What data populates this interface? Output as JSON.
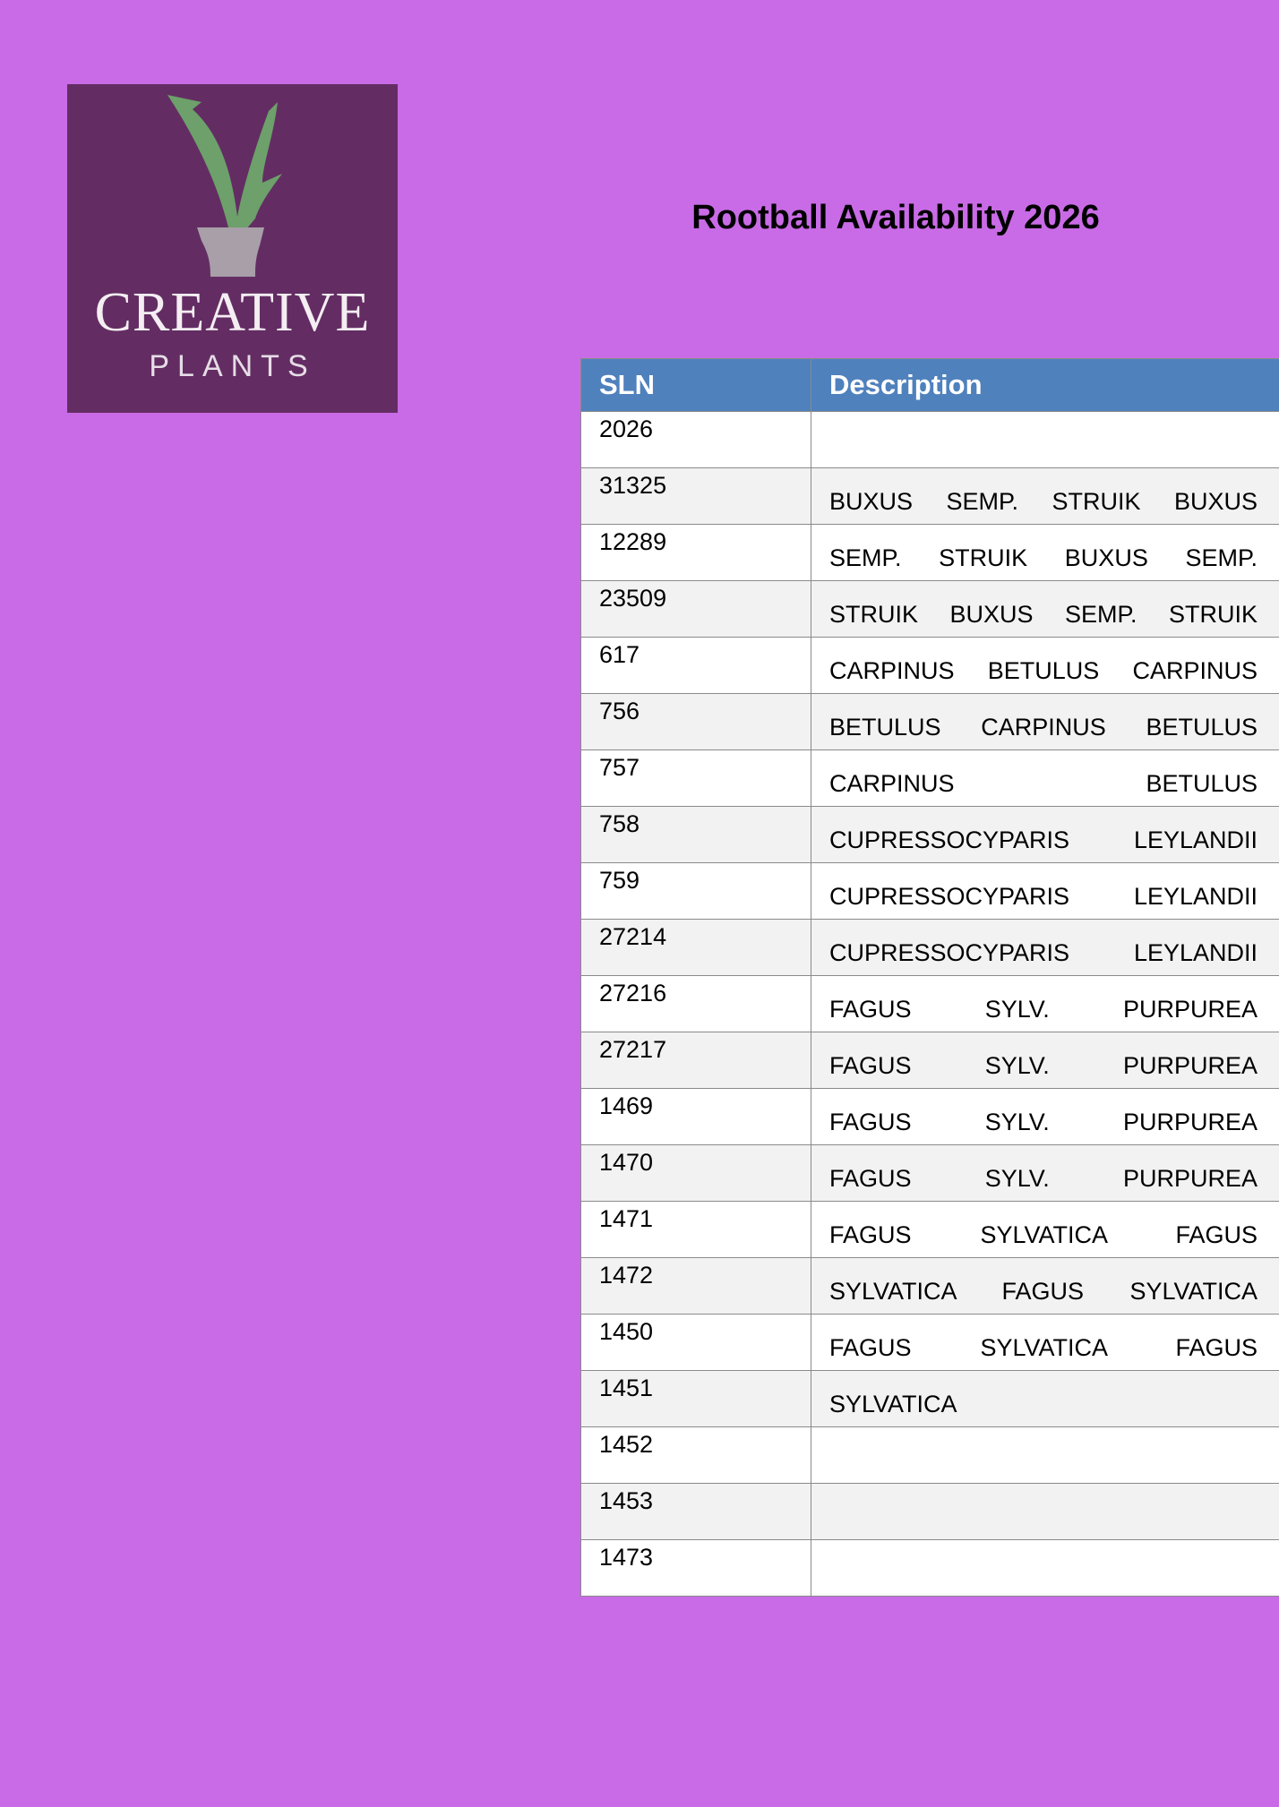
{
  "logo": {
    "line1": "CREATIVE",
    "line2": "PLANTS"
  },
  "title": "Rootball Availability 2026",
  "table": {
    "headers": [
      "SLN",
      "Description"
    ],
    "rows": [
      {
        "sln": "2026",
        "desc": ""
      },
      {
        "sln": "31325",
        "desc": "BUXUS SEMP. STRUIK BUXUS"
      },
      {
        "sln": "12289",
        "desc": "SEMP. STRUIK BUXUS SEMP."
      },
      {
        "sln": "23509",
        "desc": "STRUIK BUXUS SEMP. STRUIK"
      },
      {
        "sln": "617",
        "desc": "CARPINUS BETULUS CARPINUS"
      },
      {
        "sln": "756",
        "desc": "BETULUS CARPINUS BETULUS"
      },
      {
        "sln": "757",
        "desc": "CARPINUS BETULUS"
      },
      {
        "sln": "758",
        "desc": "CUPRESSOCYPARIS LEYLANDII"
      },
      {
        "sln": "759",
        "desc": "CUPRESSOCYPARIS LEYLANDII"
      },
      {
        "sln": "27214",
        "desc": "CUPRESSOCYPARIS LEYLANDII"
      },
      {
        "sln": "27216",
        "desc": "FAGUS SYLV. PURPUREA"
      },
      {
        "sln": "27217",
        "desc": "FAGUS SYLV. PURPUREA"
      },
      {
        "sln": "1469",
        "desc": "FAGUS SYLV. PURPUREA"
      },
      {
        "sln": "1470",
        "desc": "FAGUS SYLV. PURPUREA"
      },
      {
        "sln": "1471",
        "desc": "FAGUS SYLVATICA FAGUS"
      },
      {
        "sln": "1472",
        "desc": "SYLVATICA FAGUS SYLVATICA"
      },
      {
        "sln": "1450",
        "desc": "FAGUS SYLVATICA FAGUS"
      },
      {
        "sln": "1451",
        "desc": "SYLVATICA"
      },
      {
        "sln": "1452",
        "desc": ""
      },
      {
        "sln": "1453",
        "desc": ""
      },
      {
        "sln": "1473",
        "desc": ""
      }
    ]
  },
  "colors": {
    "background": "#c96be6",
    "logo_bg": "#632d63",
    "header": "#4f81bd",
    "row_alt": "#f2f2f2"
  }
}
